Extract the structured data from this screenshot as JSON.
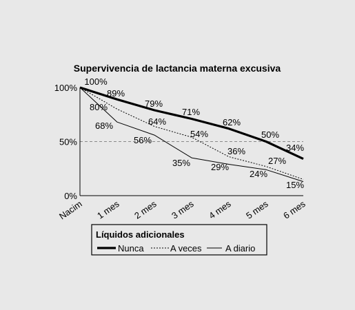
{
  "chart_data": {
    "type": "line",
    "title": "Supervivencia de lactancia materna excusiva",
    "categories": [
      "Nacim",
      "1 mes",
      "2 mes",
      "3 mes",
      "4 mes",
      "5 mes",
      "6 mes"
    ],
    "y_ticks": [
      "0%",
      "50%",
      "100%"
    ],
    "ylim": [
      0,
      100
    ],
    "reference_line": 50,
    "legend": {
      "title": "Líquidos adicionales",
      "placement": "bottom"
    },
    "series": [
      {
        "name": "Nunca",
        "style": "thick",
        "values": [
          100,
          89,
          79,
          71,
          62,
          50,
          34
        ],
        "labels": [
          "100%",
          "89%",
          "79%",
          "71%",
          "62%",
          "50%",
          "34%"
        ]
      },
      {
        "name": "A veces",
        "style": "dotted",
        "values": [
          100,
          80,
          64,
          54,
          36,
          27,
          15
        ],
        "labels": [
          "",
          "80%",
          "64%",
          "54%",
          "36%",
          "27%",
          "15%"
        ]
      },
      {
        "name": "A diario",
        "style": "thin",
        "values": [
          100,
          68,
          56,
          35,
          29,
          24,
          13
        ],
        "labels": [
          "",
          "68%",
          "56%",
          "35%",
          "29%",
          "24%",
          ""
        ]
      }
    ],
    "colors": {
      "line": "#000000",
      "reference": "#888888",
      "background": "#e8e8e8"
    }
  }
}
